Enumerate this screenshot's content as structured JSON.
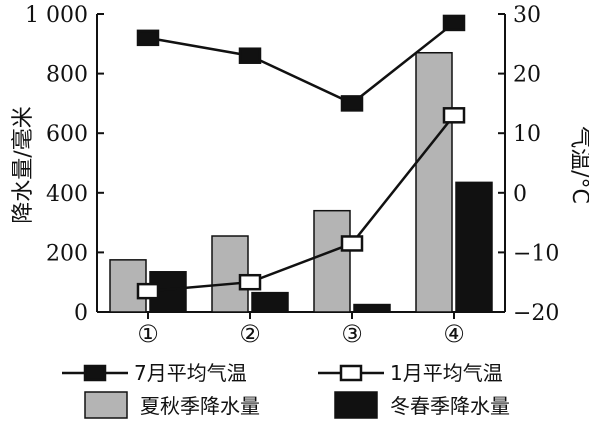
{
  "chart_data": {
    "type": "bar",
    "categories": [
      "①",
      "②",
      "③",
      "④"
    ],
    "ylabel": "降水量/毫米",
    "ylabel2": "气温/°C",
    "ylim": [
      0,
      1000
    ],
    "ylim2": [
      -20,
      30
    ],
    "yticks": [
      0,
      200,
      400,
      600,
      800,
      1000
    ],
    "yticks_labels": [
      "0",
      "200",
      "400",
      "600",
      "800",
      "1 000"
    ],
    "y2ticks": [
      -20,
      -10,
      0,
      10,
      20,
      30
    ],
    "y2ticks_labels": [
      "−20",
      "−10",
      "0",
      "10",
      "20",
      "30"
    ],
    "series": [
      {
        "name": "夏秋季降水量",
        "type": "bar",
        "axis": "left",
        "color": "#b4b4b4",
        "values": [
          175,
          255,
          340,
          870
        ]
      },
      {
        "name": "冬春季降水量",
        "type": "bar",
        "axis": "left",
        "color": "#111111",
        "values": [
          135,
          65,
          25,
          435
        ]
      },
      {
        "name": "7月平均气温",
        "type": "line",
        "axis": "right",
        "marker": "filled-square",
        "values": [
          26,
          23,
          15,
          28.5
        ]
      },
      {
        "name": "1月平均气温",
        "type": "line",
        "axis": "right",
        "marker": "open-square",
        "values": [
          -16.5,
          -15,
          -8.5,
          13
        ]
      }
    ],
    "legend": "bottom",
    "grid": false
  }
}
